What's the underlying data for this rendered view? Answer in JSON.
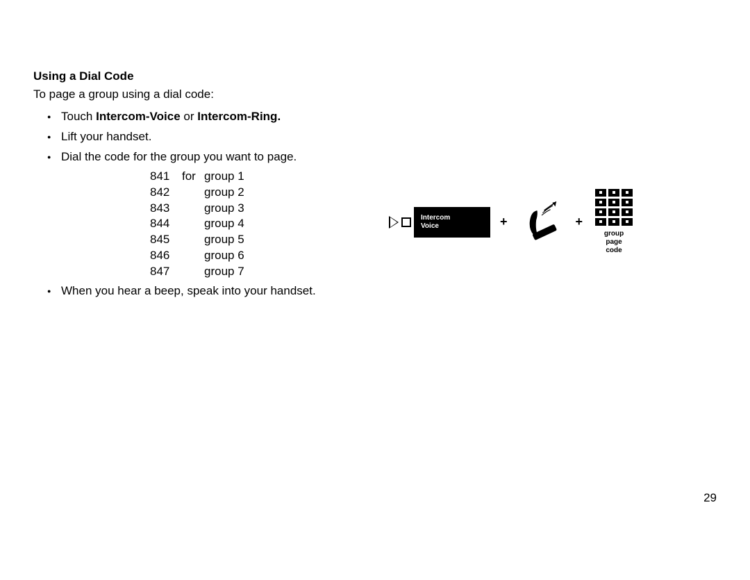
{
  "heading": "Using a Dial Code",
  "intro": "To page a group using a dial code:",
  "step1": {
    "prefix": "Touch ",
    "bold1": "Intercom-Voice",
    "mid": " or ",
    "bold2": "Intercom-Ring."
  },
  "step2": "Lift your handset.",
  "step3": "Dial the code for the group you want to page.",
  "codes": [
    {
      "code": "841",
      "prefix": "for",
      "label": "group 1"
    },
    {
      "code": "842",
      "prefix": "",
      "label": "group 2"
    },
    {
      "code": "843",
      "prefix": "",
      "label": "group 3"
    },
    {
      "code": "844",
      "prefix": "",
      "label": "group 4"
    },
    {
      "code": "845",
      "prefix": "",
      "label": "group 5"
    },
    {
      "code": "846",
      "prefix": "",
      "label": "group 6"
    },
    {
      "code": "847",
      "prefix": "",
      "label": "group 7"
    }
  ],
  "step4": "When you hear a beep, speak into your handset.",
  "diagram": {
    "button_line1": "Intercom",
    "button_line2": "Voice",
    "plus": "+",
    "keypad_label_l1": "group",
    "keypad_label_l2": "page",
    "keypad_label_l3": "code"
  },
  "page_number": "29",
  "colors": {
    "text": "#000000",
    "background": "#ffffff"
  }
}
